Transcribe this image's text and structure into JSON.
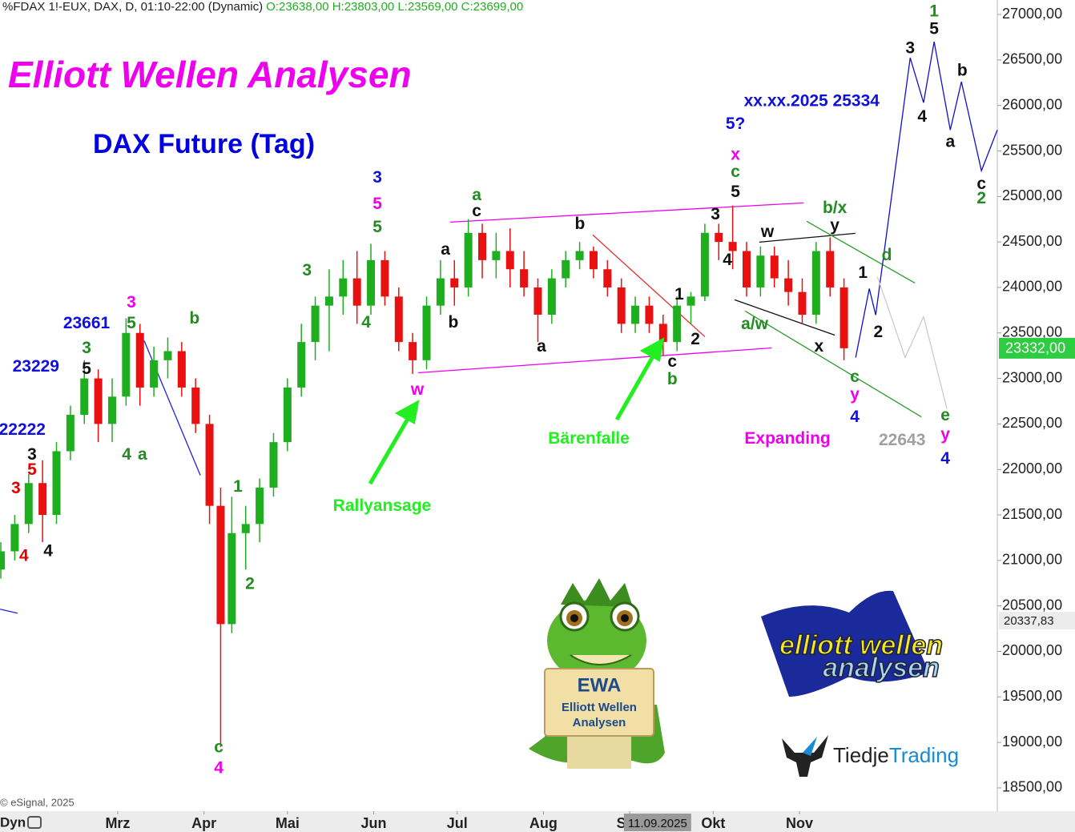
{
  "chart_data": {
    "type": "candlestick",
    "symbol": "' %FDAX 1!-EUX, DAX, D, 01:10-22:00 (Dynamic)",
    "ohlc_text": "O:23638,00 H:23803,00 L:23569,00 C:23699,00",
    "title": "Elliott Wellen Analysen",
    "subtitle": "DAX Future (Tag)",
    "copyright": "© eSignal, 2025",
    "toolbar_label": "Dyn",
    "up_color": "#1fae1f",
    "down_color": "#e81010",
    "xlim": [
      17.7,
      376.1
    ],
    "ylim": [
      18244,
      27159
    ],
    "xticks": [
      {
        "value": 60,
        "label": "Mrz"
      },
      {
        "value": 91,
        "label": "Apr"
      },
      {
        "value": 121,
        "label": "Mai"
      },
      {
        "value": 152,
        "label": "Jun"
      },
      {
        "value": 182,
        "label": "Jul"
      },
      {
        "value": 213,
        "label": "Aug"
      },
      {
        "value": 244,
        "label": "Sep"
      },
      {
        "value": 274,
        "label": "Okt"
      },
      {
        "value": 305,
        "label": "Nov"
      }
    ],
    "yticks": [
      {
        "value": 27000,
        "label": "27000,00"
      },
      {
        "value": 26500,
        "label": "26500,00"
      },
      {
        "value": 26000,
        "label": "26000,00"
      },
      {
        "value": 25500,
        "label": "25500,00"
      },
      {
        "value": 25000,
        "label": "25000,00"
      },
      {
        "value": 24500,
        "label": "24500,00"
      },
      {
        "value": 24000,
        "label": "24000,00"
      },
      {
        "value": 23500,
        "label": "23500,00"
      },
      {
        "value": 23000,
        "label": "23000,00"
      },
      {
        "value": 22500,
        "label": "22500,00"
      },
      {
        "value": 22000,
        "label": "22000,00"
      },
      {
        "value": 21500,
        "label": "21500,00"
      },
      {
        "value": 21000,
        "label": "21000,00"
      },
      {
        "value": 20500,
        "label": "20500,00"
      },
      {
        "value": 20000,
        "label": "20000,00"
      },
      {
        "value": 19500,
        "label": "19500,00"
      },
      {
        "value": 19000,
        "label": "19000,00"
      },
      {
        "value": 18500,
        "label": "18500,00"
      }
    ],
    "last_price": {
      "value": 23332,
      "label": "23332,00",
      "color": "#2ecc40"
    },
    "crosshair": {
      "y": {
        "value": 20337.83,
        "label": "20337,83"
      },
      "x": 254,
      "x_label": "11.09.2025"
    },
    "x": [
      18,
      23,
      28,
      33,
      38,
      43,
      48,
      53,
      58,
      63,
      68,
      73,
      78,
      83,
      88,
      93,
      97,
      101,
      106,
      111,
      116,
      121,
      126,
      131,
      136,
      141,
      146,
      151,
      156,
      161,
      166,
      171,
      176,
      181,
      186,
      191,
      196,
      201,
      206,
      211,
      216,
      221,
      226,
      231,
      236,
      241,
      246,
      251,
      256,
      261,
      266,
      271,
      276,
      281,
      286,
      291,
      296,
      301,
      306,
      311,
      316,
      321
    ],
    "open": [
      20900,
      21100,
      21400,
      21850,
      21500,
      22200,
      22600,
      23000,
      22500,
      22800,
      23500,
      22900,
      23200,
      23300,
      22900,
      22500,
      21600,
      20300,
      21300,
      21400,
      21800,
      22300,
      22900,
      23400,
      23800,
      23900,
      24100,
      23800,
      24300,
      23900,
      23400,
      23200,
      23800,
      24100,
      24000,
      24600,
      24300,
      24400,
      24200,
      24000,
      23700,
      24100,
      24300,
      24400,
      24200,
      24000,
      23600,
      23800,
      23600,
      23400,
      23800,
      23900,
      24600,
      24500,
      24400,
      24000,
      24350,
      24100,
      23950,
      23700,
      24400,
      24000
    ],
    "high": [
      21200,
      21500,
      21950,
      22100,
      22300,
      22700,
      23200,
      23100,
      23000,
      23661,
      23600,
      23350,
      23450,
      23400,
      23000,
      22600,
      21800,
      21700,
      21600,
      21900,
      22400,
      23000,
      23600,
      23900,
      24200,
      24300,
      24400,
      24480,
      24400,
      24000,
      23500,
      23900,
      24300,
      24300,
      24750,
      24700,
      24600,
      24650,
      24400,
      24100,
      24200,
      24400,
      24500,
      24450,
      24300,
      24100,
      23900,
      23900,
      23700,
      23900,
      23950,
      24700,
      24700,
      24900,
      24500,
      24450,
      24450,
      24300,
      24100,
      24500,
      24550,
      24100
    ],
    "low": [
      20800,
      21000,
      21300,
      21200,
      21400,
      22100,
      22500,
      22300,
      22300,
      22700,
      22700,
      22800,
      23000,
      22800,
      22400,
      21400,
      18950,
      20200,
      20900,
      21200,
      21700,
      22200,
      22800,
      23200,
      23300,
      23700,
      23600,
      23700,
      23800,
      23300,
      23050,
      23100,
      23700,
      23800,
      23900,
      24100,
      24100,
      24000,
      23900,
      23400,
      23600,
      24000,
      24200,
      24100,
      23900,
      23500,
      23500,
      23500,
      23250,
      23300,
      23600,
      23850,
      24300,
      24200,
      23900,
      23900,
      24000,
      23800,
      23600,
      23600,
      23900,
      23200
    ],
    "close": [
      21100,
      21400,
      21850,
      21500,
      22200,
      22600,
      23000,
      22500,
      22800,
      23500,
      22900,
      23200,
      23300,
      22900,
      22500,
      21600,
      20300,
      21300,
      21400,
      21800,
      22300,
      22900,
      23400,
      23800,
      23900,
      24100,
      23800,
      24300,
      23900,
      23400,
      23200,
      23800,
      24100,
      24000,
      24600,
      24300,
      24400,
      24200,
      24000,
      23700,
      24100,
      24300,
      24400,
      24200,
      24000,
      23600,
      23800,
      23600,
      23400,
      23800,
      23900,
      24600,
      24500,
      24400,
      24000,
      24350,
      24100,
      23950,
      23700,
      24400,
      24000,
      23332
    ],
    "lines": [
      {
        "color": "#ee00ee",
        "x": [
          179.5,
          306.5
        ],
        "y": [
          24718,
          24929
        ]
      },
      {
        "color": "#ee00ee",
        "x": [
          168,
          295
        ],
        "y": [
          23062,
          23335
        ]
      },
      {
        "color": "#2222dd",
        "x": [
          69.5,
          89.7
        ],
        "y": [
          23415,
          21935
        ]
      },
      {
        "color": "#2222dd",
        "x": [
          17.7,
          24
        ],
        "y": [
          20464,
          20420
        ]
      },
      {
        "color": "#e03030",
        "x": [
          230.7,
          271
        ],
        "y": [
          24578,
          23459
        ]
      },
      {
        "color": "#111111",
        "x": [
          290.6,
          325.1
        ],
        "y": [
          24498,
          24595
        ]
      },
      {
        "color": "#111111",
        "x": [
          281.7,
          317.7
        ],
        "y": [
          23864,
          23476
        ]
      },
      {
        "color": "#2a9a2a",
        "x": [
          307.6,
          346.5
        ],
        "y": [
          24727,
          24049
        ]
      },
      {
        "color": "#2a9a2a",
        "x": [
          285.5,
          348.8
        ],
        "y": [
          23741,
          22578
        ]
      },
      {
        "color": "#1010cc",
        "x": [
          325.2,
          330.1,
          332.4,
          344.8,
          349.6,
          353.4,
          359.2,
          363.2,
          370.4,
          376.1
        ],
        "y": [
          23230,
          23987,
          23697,
          26524,
          26031,
          26700,
          25731,
          26260,
          25282,
          25731
        ]
      },
      {
        "color": "#cccccc",
        "x": [
          333,
          343,
          349.6,
          358
        ],
        "y": [
          24119,
          23230,
          23679,
          22666
        ]
      }
    ],
    "annotations": [
      {
        "text": "3",
        "x": 23.4,
        "y": 21785,
        "color": "#e00000"
      },
      {
        "text": "4",
        "x": 26.3,
        "y": 21045,
        "color": "#e00000"
      },
      {
        "text": "5",
        "x": 29.2,
        "y": 21988,
        "color": "#e00000"
      },
      {
        "text": "3",
        "x": 29.2,
        "y": 22155,
        "color": "#111111"
      },
      {
        "text": "4",
        "x": 35,
        "y": 21098,
        "color": "#111111"
      },
      {
        "text": "22222",
        "x": 25.7,
        "y": 22428,
        "color": "#1010dd"
      },
      {
        "text": "23229",
        "x": 30.6,
        "y": 23124,
        "color": "#1010dd"
      },
      {
        "text": "5",
        "x": 48.8,
        "y": 23098,
        "color": "#111111"
      },
      {
        "text": "3",
        "x": 48.8,
        "y": 23327,
        "color": "#228b22"
      },
      {
        "text": "23661",
        "x": 48.8,
        "y": 23600,
        "color": "#1010dd"
      },
      {
        "text": "3",
        "x": 64.9,
        "y": 23829,
        "color": "#ee00ee"
      },
      {
        "text": "5",
        "x": 64.9,
        "y": 23600,
        "color": "#228b22"
      },
      {
        "text": "b",
        "x": 87.6,
        "y": 23653,
        "color": "#228b22"
      },
      {
        "text": "4",
        "x": 63.2,
        "y": 22155,
        "color": "#228b22"
      },
      {
        "text": "a",
        "x": 68.9,
        "y": 22155,
        "color": "#228b22"
      },
      {
        "text": "1",
        "x": 103.2,
        "y": 21803,
        "color": "#228b22"
      },
      {
        "text": "2",
        "x": 107.5,
        "y": 20737,
        "color": "#228b22"
      },
      {
        "text": "c",
        "x": 96.3,
        "y": 18940,
        "color": "#228b22"
      },
      {
        "text": "4",
        "x": 96.3,
        "y": 18711,
        "color": "#ee00ee"
      },
      {
        "text": "3",
        "x": 128,
        "y": 24181,
        "color": "#228b22"
      },
      {
        "text": "4",
        "x": 149.3,
        "y": 23609,
        "color": "#228b22"
      },
      {
        "text": "3",
        "x": 153.3,
        "y": 25203,
        "color": "#1010dd"
      },
      {
        "text": "5",
        "x": 153.3,
        "y": 24912,
        "color": "#ee00ee"
      },
      {
        "text": "5",
        "x": 153.3,
        "y": 24657,
        "color": "#228b22"
      },
      {
        "text": "w",
        "x": 167.7,
        "y": 22869,
        "color": "#ee00ee"
      },
      {
        "text": "a",
        "x": 189,
        "y": 25009,
        "color": "#228b22"
      },
      {
        "text": "c",
        "x": 189,
        "y": 24833,
        "color": "#111111"
      },
      {
        "text": "a",
        "x": 177.8,
        "y": 24410,
        "color": "#111111"
      },
      {
        "text": "b",
        "x": 180.6,
        "y": 23609,
        "color": "#111111"
      },
      {
        "text": "b",
        "x": 226.1,
        "y": 24692,
        "color": "#111111"
      },
      {
        "text": "a",
        "x": 212.3,
        "y": 23344,
        "color": "#111111"
      },
      {
        "text": "1",
        "x": 261.8,
        "y": 23917,
        "color": "#111111"
      },
      {
        "text": "2",
        "x": 267.6,
        "y": 23424,
        "color": "#111111"
      },
      {
        "text": "c",
        "x": 259.3,
        "y": 23177,
        "color": "#111111"
      },
      {
        "text": "b",
        "x": 259.3,
        "y": 22983,
        "color": "#228b22"
      },
      {
        "text": "3",
        "x": 274.8,
        "y": 24798,
        "color": "#111111"
      },
      {
        "text": "4",
        "x": 279.1,
        "y": 24296,
        "color": "#111111"
      },
      {
        "text": "5",
        "x": 282,
        "y": 25044,
        "color": "#111111"
      },
      {
        "text": "c",
        "x": 282,
        "y": 25265,
        "color": "#228b22"
      },
      {
        "text": "x",
        "x": 282,
        "y": 25450,
        "color": "#ee00ee"
      },
      {
        "text": "5?",
        "x": 282,
        "y": 25793,
        "color": "#1010dd"
      },
      {
        "text": "xx.xx.2025 25334",
        "x": 309.4,
        "y": 26040,
        "color": "#1010dd"
      },
      {
        "text": "w",
        "x": 293.5,
        "y": 24604,
        "color": "#111111"
      },
      {
        "text": "a/w",
        "x": 288.9,
        "y": 23591,
        "color": "#228b22"
      },
      {
        "text": "x",
        "x": 312,
        "y": 23344,
        "color": "#111111"
      },
      {
        "text": "b/x",
        "x": 317.7,
        "y": 24868,
        "color": "#228b22"
      },
      {
        "text": "y",
        "x": 317.7,
        "y": 24674,
        "color": "#111111"
      },
      {
        "text": "c",
        "x": 324.9,
        "y": 23010,
        "color": "#228b22"
      },
      {
        "text": "y",
        "x": 324.9,
        "y": 22816,
        "color": "#ee00ee"
      },
      {
        "text": "4",
        "x": 324.9,
        "y": 22569,
        "color": "#1010dd"
      },
      {
        "text": "1",
        "x": 327.8,
        "y": 24155,
        "color": "#111111"
      },
      {
        "text": "2",
        "x": 333.3,
        "y": 23503,
        "color": "#111111"
      },
      {
        "text": "d",
        "x": 336.4,
        "y": 24348,
        "color": "#228b22"
      },
      {
        "text": "e",
        "x": 357.4,
        "y": 22587,
        "color": "#228b22"
      },
      {
        "text": "y",
        "x": 357.4,
        "y": 22375,
        "color": "#ee00ee"
      },
      {
        "text": "4",
        "x": 357.4,
        "y": 22111,
        "color": "#1010dd"
      },
      {
        "text": "22643",
        "x": 341.9,
        "y": 22314,
        "color": "#a0a0a0"
      },
      {
        "text": "Expanding",
        "x": 300.7,
        "y": 22331,
        "color": "#ee00ee"
      },
      {
        "text": "3",
        "x": 344.8,
        "y": 26621,
        "color": "#111111"
      },
      {
        "text": "4",
        "x": 349.1,
        "y": 25872,
        "color": "#111111"
      },
      {
        "text": "5",
        "x": 353.4,
        "y": 26833,
        "color": "#111111"
      },
      {
        "text": "1",
        "x": 353.4,
        "y": 27026,
        "color": "#228b22"
      },
      {
        "text": "b",
        "x": 363.5,
        "y": 26375,
        "color": "#111111"
      },
      {
        "text": "a",
        "x": 359.2,
        "y": 25591,
        "color": "#111111"
      },
      {
        "text": "c",
        "x": 370.4,
        "y": 25133,
        "color": "#111111"
      },
      {
        "text": "2",
        "x": 370.4,
        "y": 24974,
        "color": "#228b22"
      },
      {
        "text": "Rallyansage",
        "x": 155,
        "y": 21591,
        "color": "#22ee22"
      },
      {
        "text": "Bärenfalle",
        "x": 229.3,
        "y": 22331,
        "color": "#22ee22"
      }
    ]
  },
  "logos": {
    "mascot": {
      "title": "EWA",
      "line1": "Elliott Wellen",
      "line2": "Analysen"
    },
    "ewa": {
      "line1": "elliott wellen",
      "line2": "analysen"
    },
    "tiedje": {
      "part1": "Tiedje",
      "part2": "Trading"
    }
  }
}
